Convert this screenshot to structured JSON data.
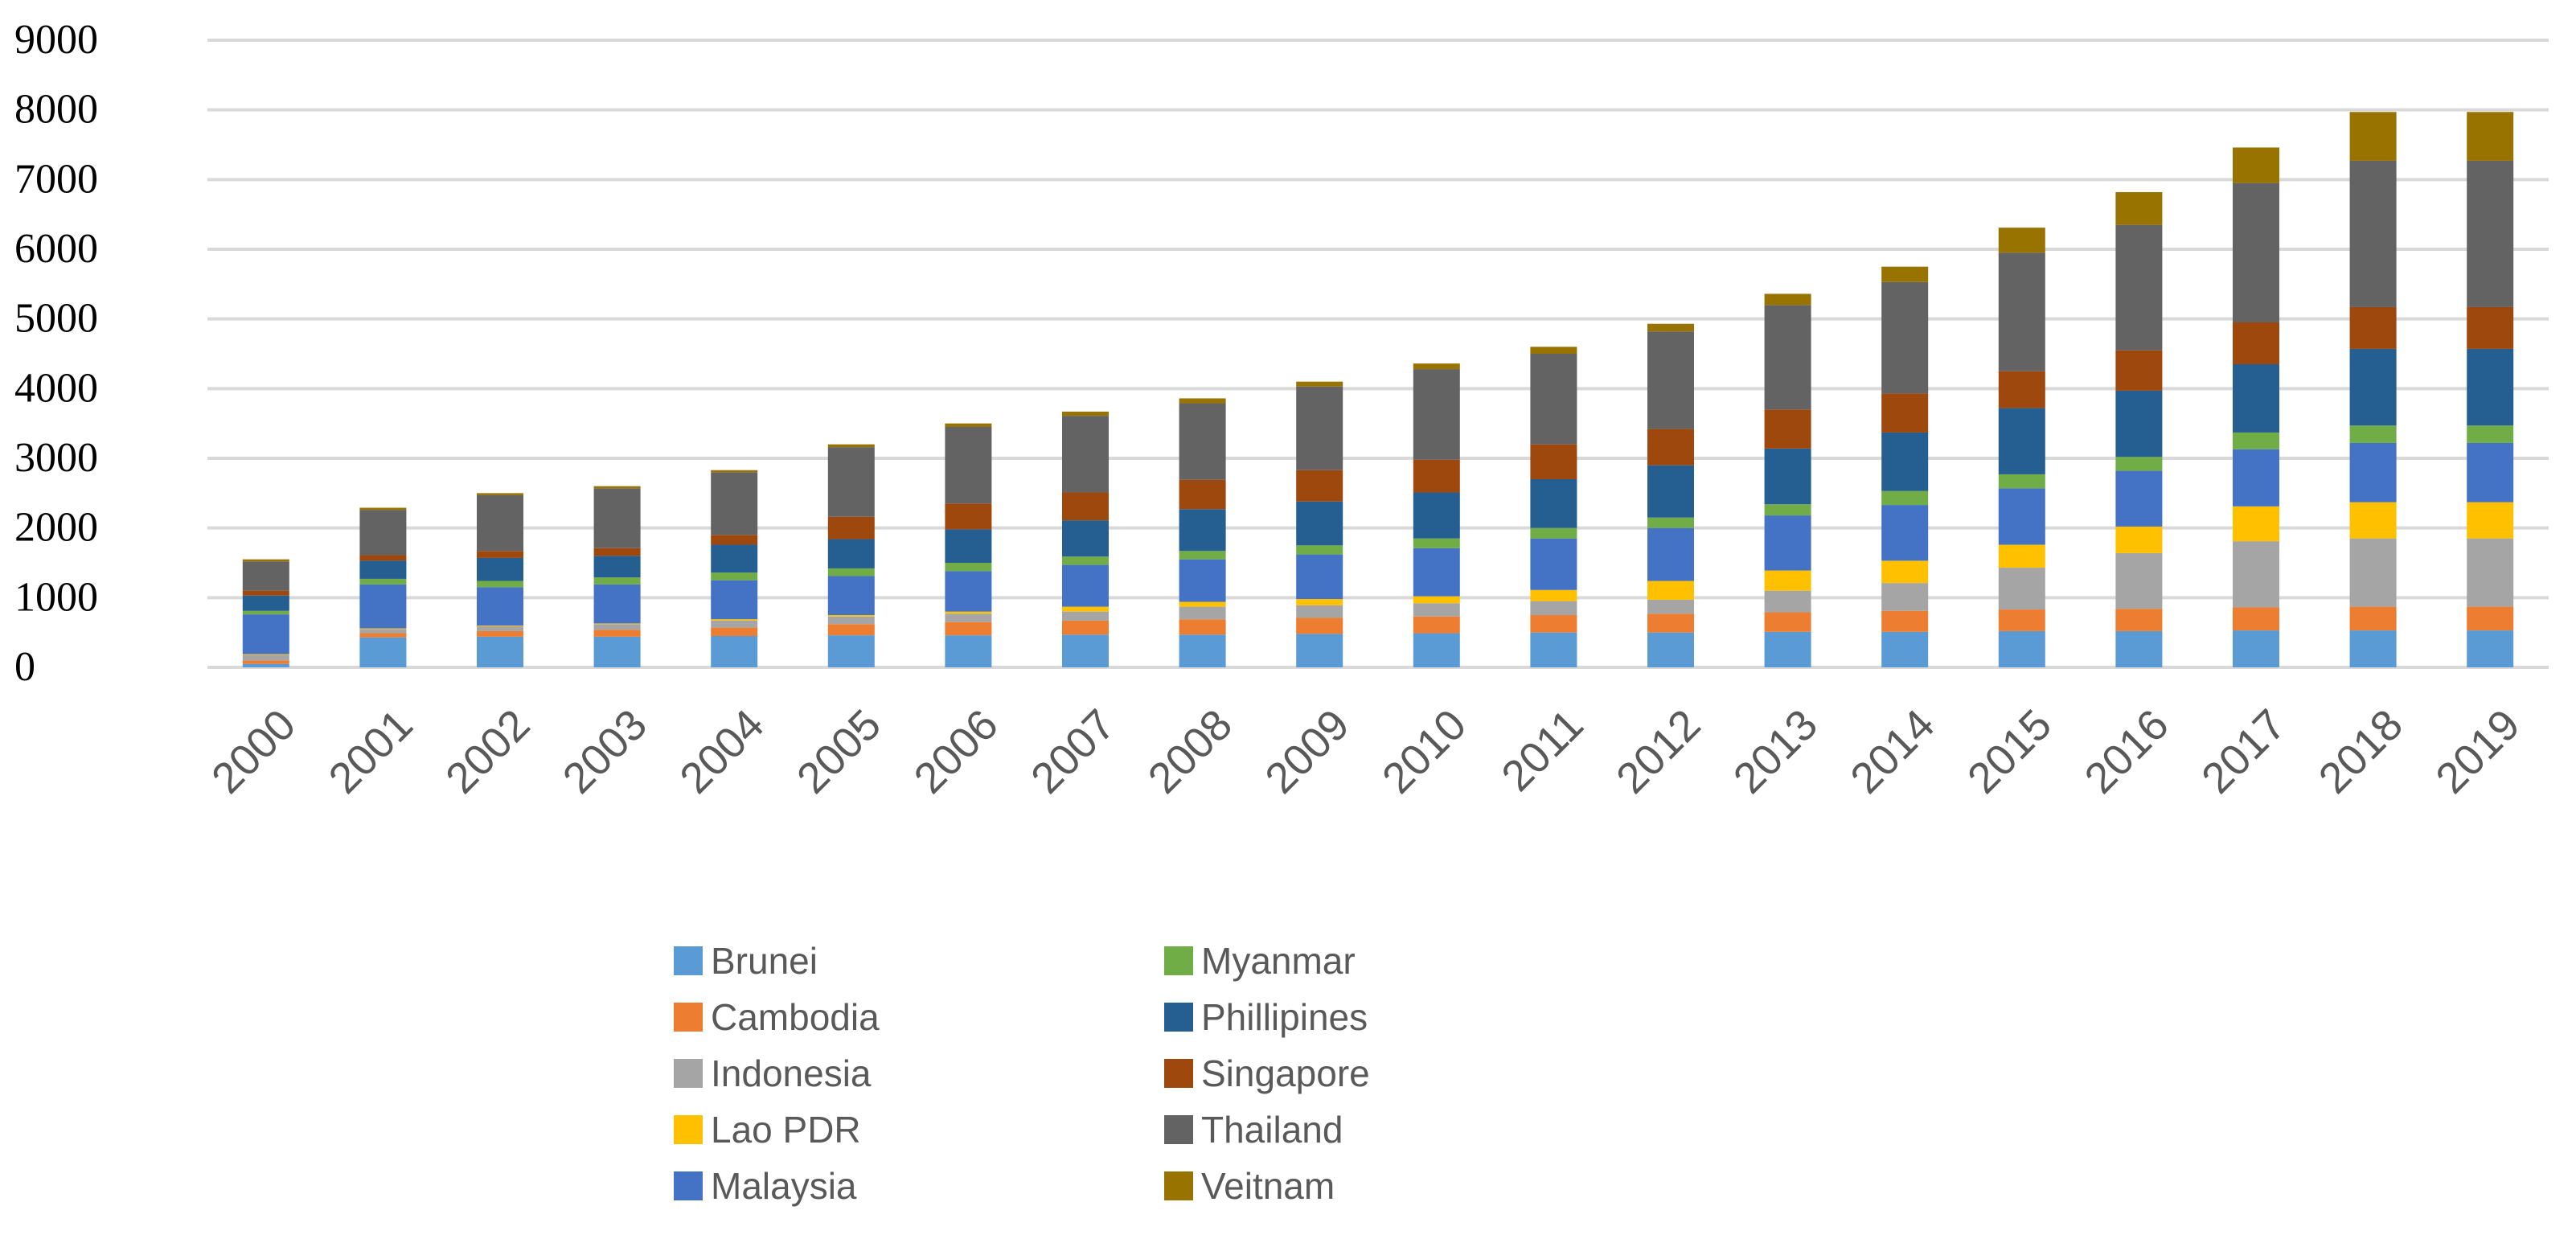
{
  "chart_data": {
    "type": "bar",
    "stacked": true,
    "title": "",
    "xlabel": "",
    "ylabel": "",
    "ylim": [
      0,
      9000
    ],
    "yticks": [
      0,
      1000,
      2000,
      3000,
      4000,
      5000,
      6000,
      7000,
      8000,
      9000
    ],
    "grid": true,
    "legend_position": "bottom",
    "categories": [
      "2000",
      "2001",
      "2002",
      "2003",
      "2004",
      "2005",
      "2006",
      "2007",
      "2008",
      "2009",
      "2010",
      "2011",
      "2012",
      "2013",
      "2014",
      "2015",
      "2016",
      "2017",
      "2018",
      "2019"
    ],
    "series": [
      {
        "name": "Brunei",
        "color": "#5B9BD5",
        "values": [
          50,
          430,
          440,
          440,
          450,
          460,
          460,
          470,
          470,
          480,
          490,
          500,
          500,
          510,
          510,
          520,
          520,
          530,
          530,
          530
        ]
      },
      {
        "name": "Cambodia",
        "color": "#ED7D31",
        "values": [
          50,
          60,
          80,
          100,
          120,
          160,
          190,
          200,
          220,
          230,
          240,
          250,
          270,
          280,
          300,
          310,
          320,
          330,
          340,
          340
        ]
      },
      {
        "name": "Indonesia",
        "color": "#A5A5A5",
        "values": [
          80,
          60,
          70,
          80,
          100,
          110,
          120,
          130,
          180,
          180,
          190,
          200,
          200,
          310,
          400,
          600,
          800,
          950,
          980,
          980
        ]
      },
      {
        "name": "Lao PDR",
        "color": "#FFC000",
        "values": [
          10,
          10,
          10,
          10,
          20,
          20,
          30,
          70,
          70,
          90,
          100,
          160,
          270,
          290,
          320,
          330,
          380,
          500,
          520,
          520
        ]
      },
      {
        "name": "Malaysia",
        "color": "#4472C4",
        "values": [
          570,
          630,
          550,
          560,
          560,
          560,
          580,
          600,
          610,
          640,
          690,
          740,
          760,
          790,
          800,
          810,
          800,
          820,
          850,
          850
        ]
      },
      {
        "name": "Myanmar",
        "color": "#70AD47",
        "values": [
          50,
          80,
          90,
          100,
          110,
          110,
          120,
          120,
          120,
          130,
          140,
          150,
          150,
          160,
          200,
          200,
          200,
          240,
          250,
          250
        ]
      },
      {
        "name": "Phillipines",
        "color": "#255E91",
        "values": [
          220,
          260,
          330,
          310,
          400,
          420,
          480,
          520,
          600,
          630,
          660,
          700,
          750,
          800,
          840,
          950,
          950,
          980,
          1100,
          1100
        ]
      },
      {
        "name": "Singapore",
        "color": "#9E480E",
        "values": [
          70,
          80,
          100,
          110,
          140,
          320,
          370,
          400,
          420,
          450,
          470,
          500,
          520,
          560,
          560,
          530,
          580,
          600,
          600,
          600
        ]
      },
      {
        "name": "Thailand",
        "color": "#636363",
        "values": [
          420,
          650,
          800,
          860,
          900,
          1000,
          1100,
          1100,
          1100,
          1200,
          1300,
          1300,
          1400,
          1500,
          1600,
          1700,
          1800,
          2000,
          2100,
          2100
        ]
      },
      {
        "name": "Veitnam",
        "color": "#997300",
        "values": [
          30,
          30,
          30,
          30,
          30,
          40,
          50,
          60,
          70,
          70,
          80,
          100,
          110,
          160,
          220,
          360,
          470,
          510,
          700,
          700
        ]
      }
    ]
  }
}
